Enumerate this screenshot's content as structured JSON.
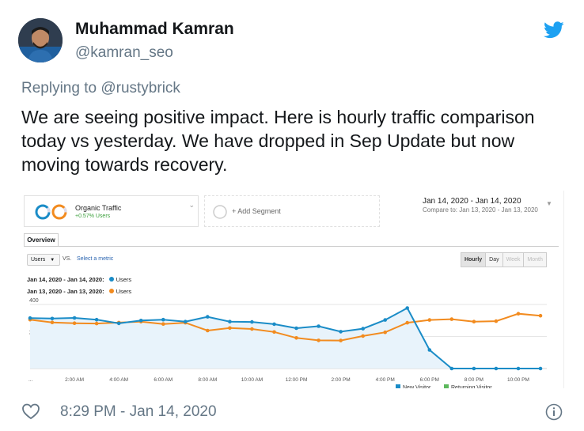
{
  "author": {
    "name": "Muhammad Kamran",
    "handle": "@kamran_seo"
  },
  "reply": {
    "prefix": "Replying to ",
    "handle": "@rustybrick"
  },
  "tweet_text": "We are seeing positive impact. Here is hourly traffic comparison today vs yesterday. We have dropped in Sep Update but now moving towards recovery.",
  "footer": {
    "timestamp": "8:29 PM - Jan 14, 2020"
  },
  "icons": {
    "logo": "twitter-bird-icon",
    "like": "heart-icon",
    "info": "info-icon"
  },
  "analytics": {
    "segment": {
      "label": "Organic Traffic",
      "sub": "+0.57% Users"
    },
    "add_segment": "+ Add Segment",
    "date_range": "Jan 14, 2020 - Jan 14, 2020",
    "compare_range": "Compare to: Jan 13, 2020 - Jan 13, 2020",
    "tab": "Overview",
    "metric_select": "Users",
    "vs_label": "VS.",
    "select_metric": "Select a metric",
    "granularity": [
      "Hourly",
      "Day",
      "Week",
      "Month"
    ],
    "legend": [
      {
        "range": "Jan 14, 2020 - Jan 14, 2020:",
        "metric": "Users",
        "color": "#1a8cc7"
      },
      {
        "range": "Jan 13, 2020 - Jan 13, 2020:",
        "metric": "Users",
        "color": "#f28b1f"
      }
    ],
    "bottom_legend": [
      {
        "label": "New Visitor",
        "color": "#1a8cc7"
      },
      {
        "label": "Returning Visitor",
        "color": "#5cb85c"
      }
    ]
  },
  "chart_data": {
    "type": "line",
    "title": "",
    "xlabel": "",
    "ylabel": "",
    "ylim": [
      0,
      400
    ],
    "y_ticks": [
      200,
      400
    ],
    "x_ticks": [
      "...",
      "2:00 AM",
      "4:00 AM",
      "6:00 AM",
      "8:00 AM",
      "10:00 AM",
      "12:00 PM",
      "2:00 PM",
      "4:00 PM",
      "6:00 PM",
      "8:00 PM",
      "10:00 PM"
    ],
    "grid": true,
    "series": [
      {
        "name": "Jan 14, 2020 - Jan 14, 2020: Users",
        "color": "#1a8cc7",
        "values": [
          315,
          312,
          316,
          305,
          282,
          300,
          305,
          293,
          323,
          293,
          291,
          277,
          252,
          264,
          230,
          249,
          303,
          378,
          116,
          0,
          0,
          0,
          0,
          0
        ]
      },
      {
        "name": "Jan 13, 2020 - Jan 13, 2020: Users",
        "color": "#f28b1f",
        "values": [
          305,
          288,
          283,
          281,
          287,
          293,
          278,
          286,
          237,
          253,
          247,
          228,
          191,
          176,
          175,
          203,
          226,
          286,
          303,
          308,
          293,
          296,
          342,
          330
        ]
      }
    ]
  }
}
